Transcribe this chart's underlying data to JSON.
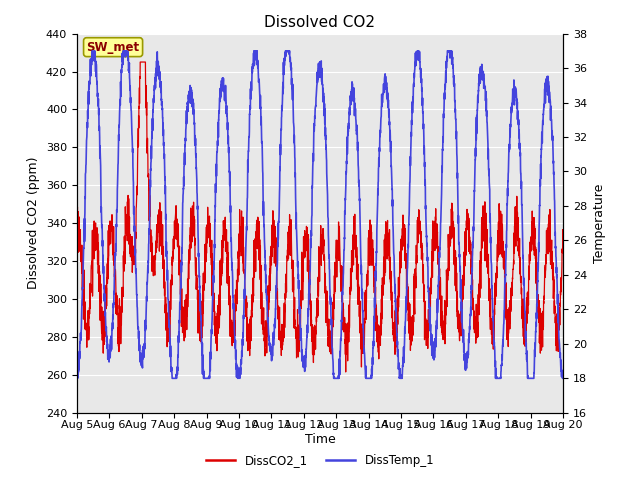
{
  "title": "Dissolved CO2",
  "xlabel": "Time",
  "ylabel_left": "Dissolved CO2 (ppm)",
  "ylabel_right": "Temperature",
  "xlim": [
    0,
    15
  ],
  "ylim_left": [
    240,
    440
  ],
  "ylim_right": [
    16,
    38
  ],
  "yticks_left": [
    240,
    260,
    280,
    300,
    320,
    340,
    360,
    380,
    400,
    420,
    440
  ],
  "yticks_right": [
    16,
    18,
    20,
    22,
    24,
    26,
    28,
    30,
    32,
    34,
    36,
    38
  ],
  "xtick_labels": [
    "Aug 5",
    "Aug 6",
    "Aug 7",
    "Aug 8",
    "Aug 9",
    "Aug 10",
    "Aug 11",
    "Aug 12",
    "Aug 13",
    "Aug 14",
    "Aug 15",
    "Aug 16",
    "Aug 17",
    "Aug 18",
    "Aug 19",
    "Aug 20"
  ],
  "annotation_text": "SW_met",
  "co2_color": "#dd0000",
  "temp_color": "#4444dd",
  "background_color": "#e8e8e8",
  "fig_background": "#ffffff",
  "legend_labels": [
    "DissCO2_1",
    "DissTemp_1"
  ],
  "title_fontsize": 11,
  "label_fontsize": 9,
  "tick_fontsize": 8
}
